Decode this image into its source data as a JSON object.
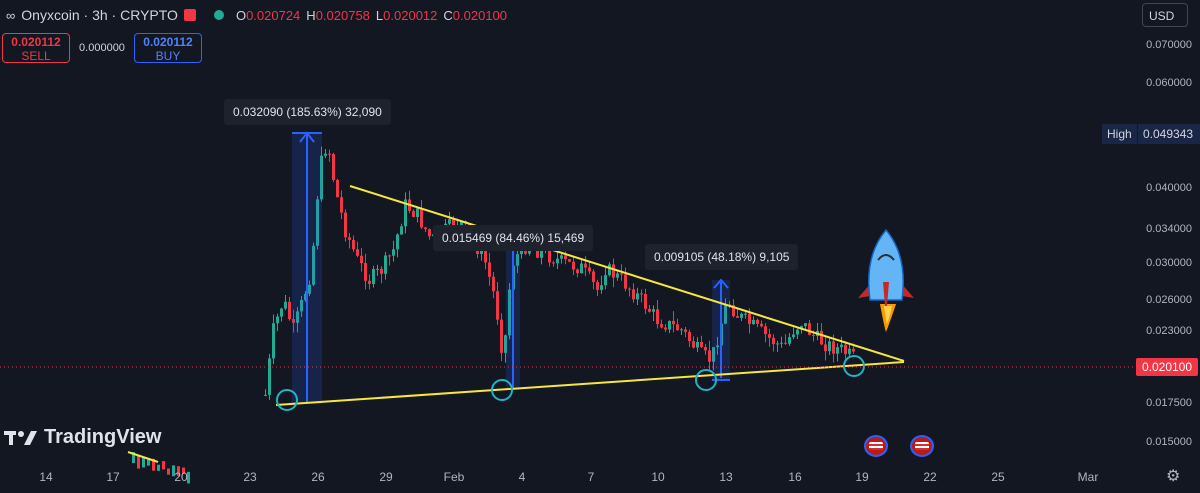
{
  "header": {
    "symbol": "Onyxcoin · 3h · CRYPTO",
    "ohlc": [
      {
        "k": "O",
        "v": "0.020724"
      },
      {
        "k": "H",
        "v": "0.020758"
      },
      {
        "k": "L",
        "v": "0.020012"
      },
      {
        "k": "C",
        "v": "0.020100"
      }
    ]
  },
  "trade": {
    "sell_price": "0.020112",
    "sell_label": "SELL",
    "spread": "0.000000",
    "buy_price": "0.020112",
    "buy_label": "BUY"
  },
  "currency": "USD",
  "brand": "TradingView",
  "colors": {
    "up": "#22ab94",
    "down": "#f23645",
    "trendline": "#f5e642",
    "measure": "#2962ff",
    "circle": "#22b3c4",
    "background": "#131722"
  },
  "chart_data": {
    "type": "candlestick",
    "y_ticks": [
      "0.070000",
      "0.060000",
      "0.040000",
      "0.034000",
      "0.030000",
      "0.026000",
      "0.023000",
      "0.017500",
      "0.015000"
    ],
    "x_ticks": [
      "14",
      "17",
      "20",
      "23",
      "26",
      "29",
      "Feb",
      "4",
      "7",
      "10",
      "13",
      "16",
      "19",
      "22",
      "25",
      "Mar"
    ],
    "high_label": "High",
    "high_value": "0.049343",
    "current_price": "0.020100",
    "measurements": [
      {
        "label": "0.032090 (185.63%) 32,090",
        "from": 0.0173,
        "to": 0.0494
      },
      {
        "label": "0.015469 (84.46%) 15,469",
        "from": 0.0183,
        "to": 0.0338
      },
      {
        "label": "0.009105 (48.18%) 9,105",
        "from": 0.0189,
        "to": 0.028
      }
    ],
    "pattern": "descending triangle",
    "grid": false
  }
}
